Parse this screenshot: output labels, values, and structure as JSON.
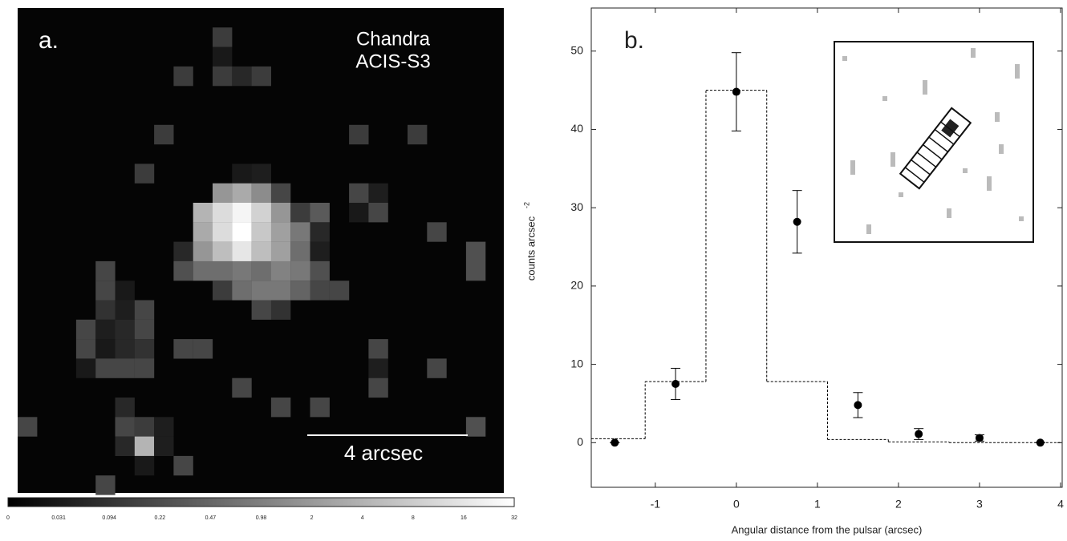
{
  "panel_a": {
    "label": "a.",
    "instrument": [
      "Chandra",
      "ACIS-S3"
    ],
    "scale_bar": "4 arcsec",
    "colorbar_ticks": [
      0,
      0.031,
      0.094,
      0.22,
      0.47,
      0.98,
      2,
      4,
      8,
      16,
      32
    ]
  },
  "chart_data": {
    "type": "scatter",
    "panel_label": "b.",
    "xlabel": "Angular distance from the pulsar (arcsec)",
    "ylabel": "counts arcsec",
    "ylabel_exponent": "-2",
    "xlim": [
      -1.79,
      4.02
    ],
    "ylim": [
      -5.7,
      55.5
    ],
    "xticks": [
      -1,
      0,
      1,
      2,
      3,
      4
    ],
    "yticks": [
      0,
      10,
      20,
      30,
      40,
      50
    ],
    "series": [
      {
        "color": "#000000",
        "x": [
          -1.5,
          -0.75,
          0,
          0.75,
          1.5,
          2.25,
          3,
          3.75
        ],
        "values": [
          0,
          7.5,
          44.8,
          28.2,
          4.8,
          1.1,
          0.6,
          0
        ],
        "errors": [
          0,
          2,
          5,
          4,
          1.6,
          0.7,
          0.4,
          0
        ]
      }
    ],
    "model": {
      "color": "#000000",
      "bins": [
        -1.79,
        -1.125,
        -0.375,
        0.375,
        1.125,
        1.875,
        2.625,
        3.375,
        4.02
      ],
      "values": [
        0.5,
        7.8,
        45,
        7.8,
        0.4,
        0.1,
        0,
        0
      ]
    }
  }
}
